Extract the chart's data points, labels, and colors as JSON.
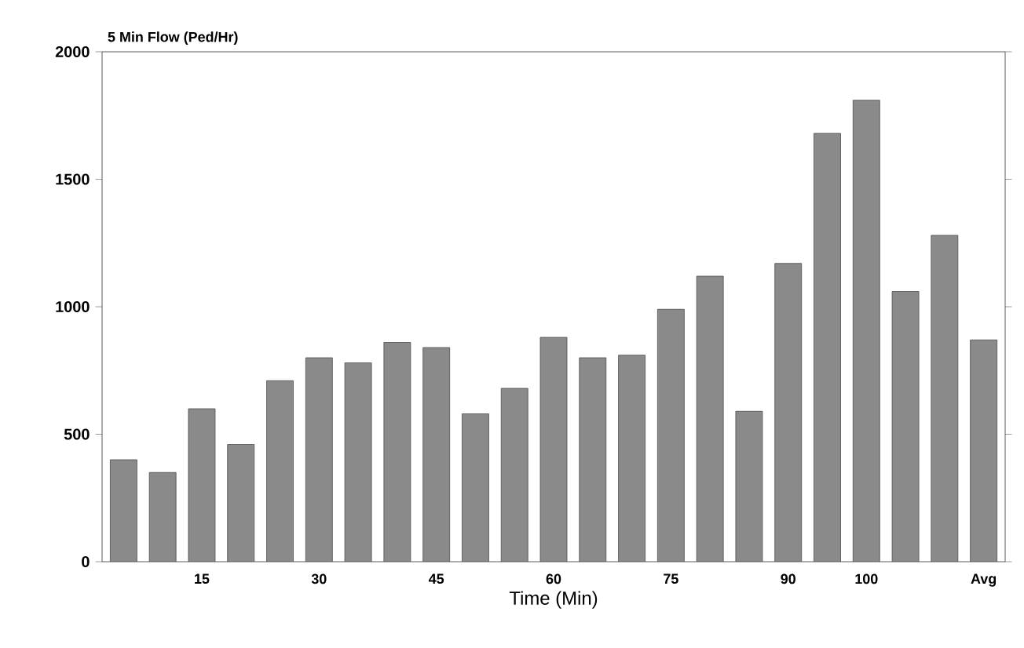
{
  "chart_data": {
    "type": "bar",
    "ylabel": "5 Min Flow (Ped/Hr)",
    "xlabel": "Time (Min)",
    "categories": [
      null,
      null,
      "15",
      null,
      null,
      "30",
      null,
      null,
      "45",
      null,
      null,
      "60",
      null,
      null,
      "75",
      null,
      null,
      "90",
      null,
      "100",
      null,
      null,
      "Avg"
    ],
    "values": [
      400,
      350,
      600,
      460,
      710,
      800,
      780,
      860,
      840,
      580,
      680,
      880,
      800,
      810,
      990,
      1120,
      590,
      1170,
      1680,
      1810,
      1060,
      1280,
      870
    ],
    "color": "#8a8a8a",
    "ylim": [
      0,
      2000
    ],
    "yticks": [
      0,
      500,
      1000,
      1500,
      2000
    ],
    "grid": false
  }
}
